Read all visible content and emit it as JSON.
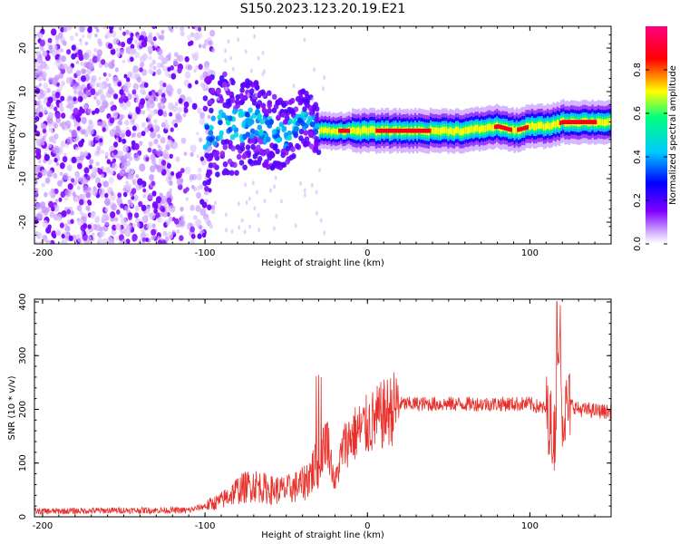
{
  "chart_data": [
    {
      "type": "heatmap",
      "title": "S150.2023.123.20.19.E21",
      "xlabel": "Height of straight line (km)",
      "ylabel": "Frequency (Hz)",
      "xlim": [
        -205,
        150
      ],
      "ylim": [
        -25,
        25
      ],
      "x_ticks": [
        -200,
        -100,
        0,
        100
      ],
      "y_ticks": [
        -20,
        -10,
        0,
        10,
        20
      ],
      "colorbar": {
        "label": "Normalized spectral amplitude",
        "range": [
          0.0,
          1.0
        ],
        "ticks": [
          0.0,
          0.2,
          0.4,
          0.6,
          0.8
        ],
        "tick_labels": [
          "0.0",
          "0.2",
          "0.4",
          "0.6",
          "0.8"
        ],
        "colormap": [
          "#ffffff",
          "#dcc8ff",
          "#8000ff",
          "#0000ff",
          "#00c8ff",
          "#00ff80",
          "#ffff00",
          "#ff0000",
          "#ff0080"
        ]
      },
      "ridge": {
        "x": [
          -100,
          -90,
          -80,
          -70,
          -60,
          -50,
          -40,
          -35,
          -30,
          -20,
          -10,
          0,
          20,
          40,
          60,
          80,
          90,
          100,
          110,
          120,
          150
        ],
        "y": [
          0,
          3,
          2,
          3,
          1,
          0,
          4,
          3,
          1,
          1,
          1,
          1,
          1,
          1,
          1,
          2,
          1,
          2,
          2,
          3,
          3
        ]
      }
    },
    {
      "type": "line",
      "xlabel": "Height of straight line (km)",
      "ylabel": "SNR (10 * v/v)",
      "xlim": [
        -205,
        150
      ],
      "ylim": [
        0,
        405
      ],
      "x_ticks": [
        -200,
        -100,
        0,
        100
      ],
      "y_ticks": [
        0,
        100,
        200,
        300,
        400
      ],
      "line_color": "#e8302a",
      "series_profile": {
        "x": [
          -205,
          -150,
          -110,
          -100,
          -90,
          -80,
          -70,
          -60,
          -50,
          -40,
          -30,
          -25,
          -20,
          -15,
          -10,
          0,
          10,
          20,
          30,
          40,
          60,
          80,
          100,
          110,
          115,
          118,
          120,
          125,
          130,
          150
        ],
        "y": [
          10,
          12,
          12,
          20,
          30,
          50,
          60,
          50,
          50,
          60,
          100,
          150,
          60,
          130,
          150,
          170,
          190,
          210,
          210,
          210,
          210,
          210,
          210,
          200,
          150,
          330,
          190,
          210,
          200,
          195
        ]
      }
    }
  ]
}
